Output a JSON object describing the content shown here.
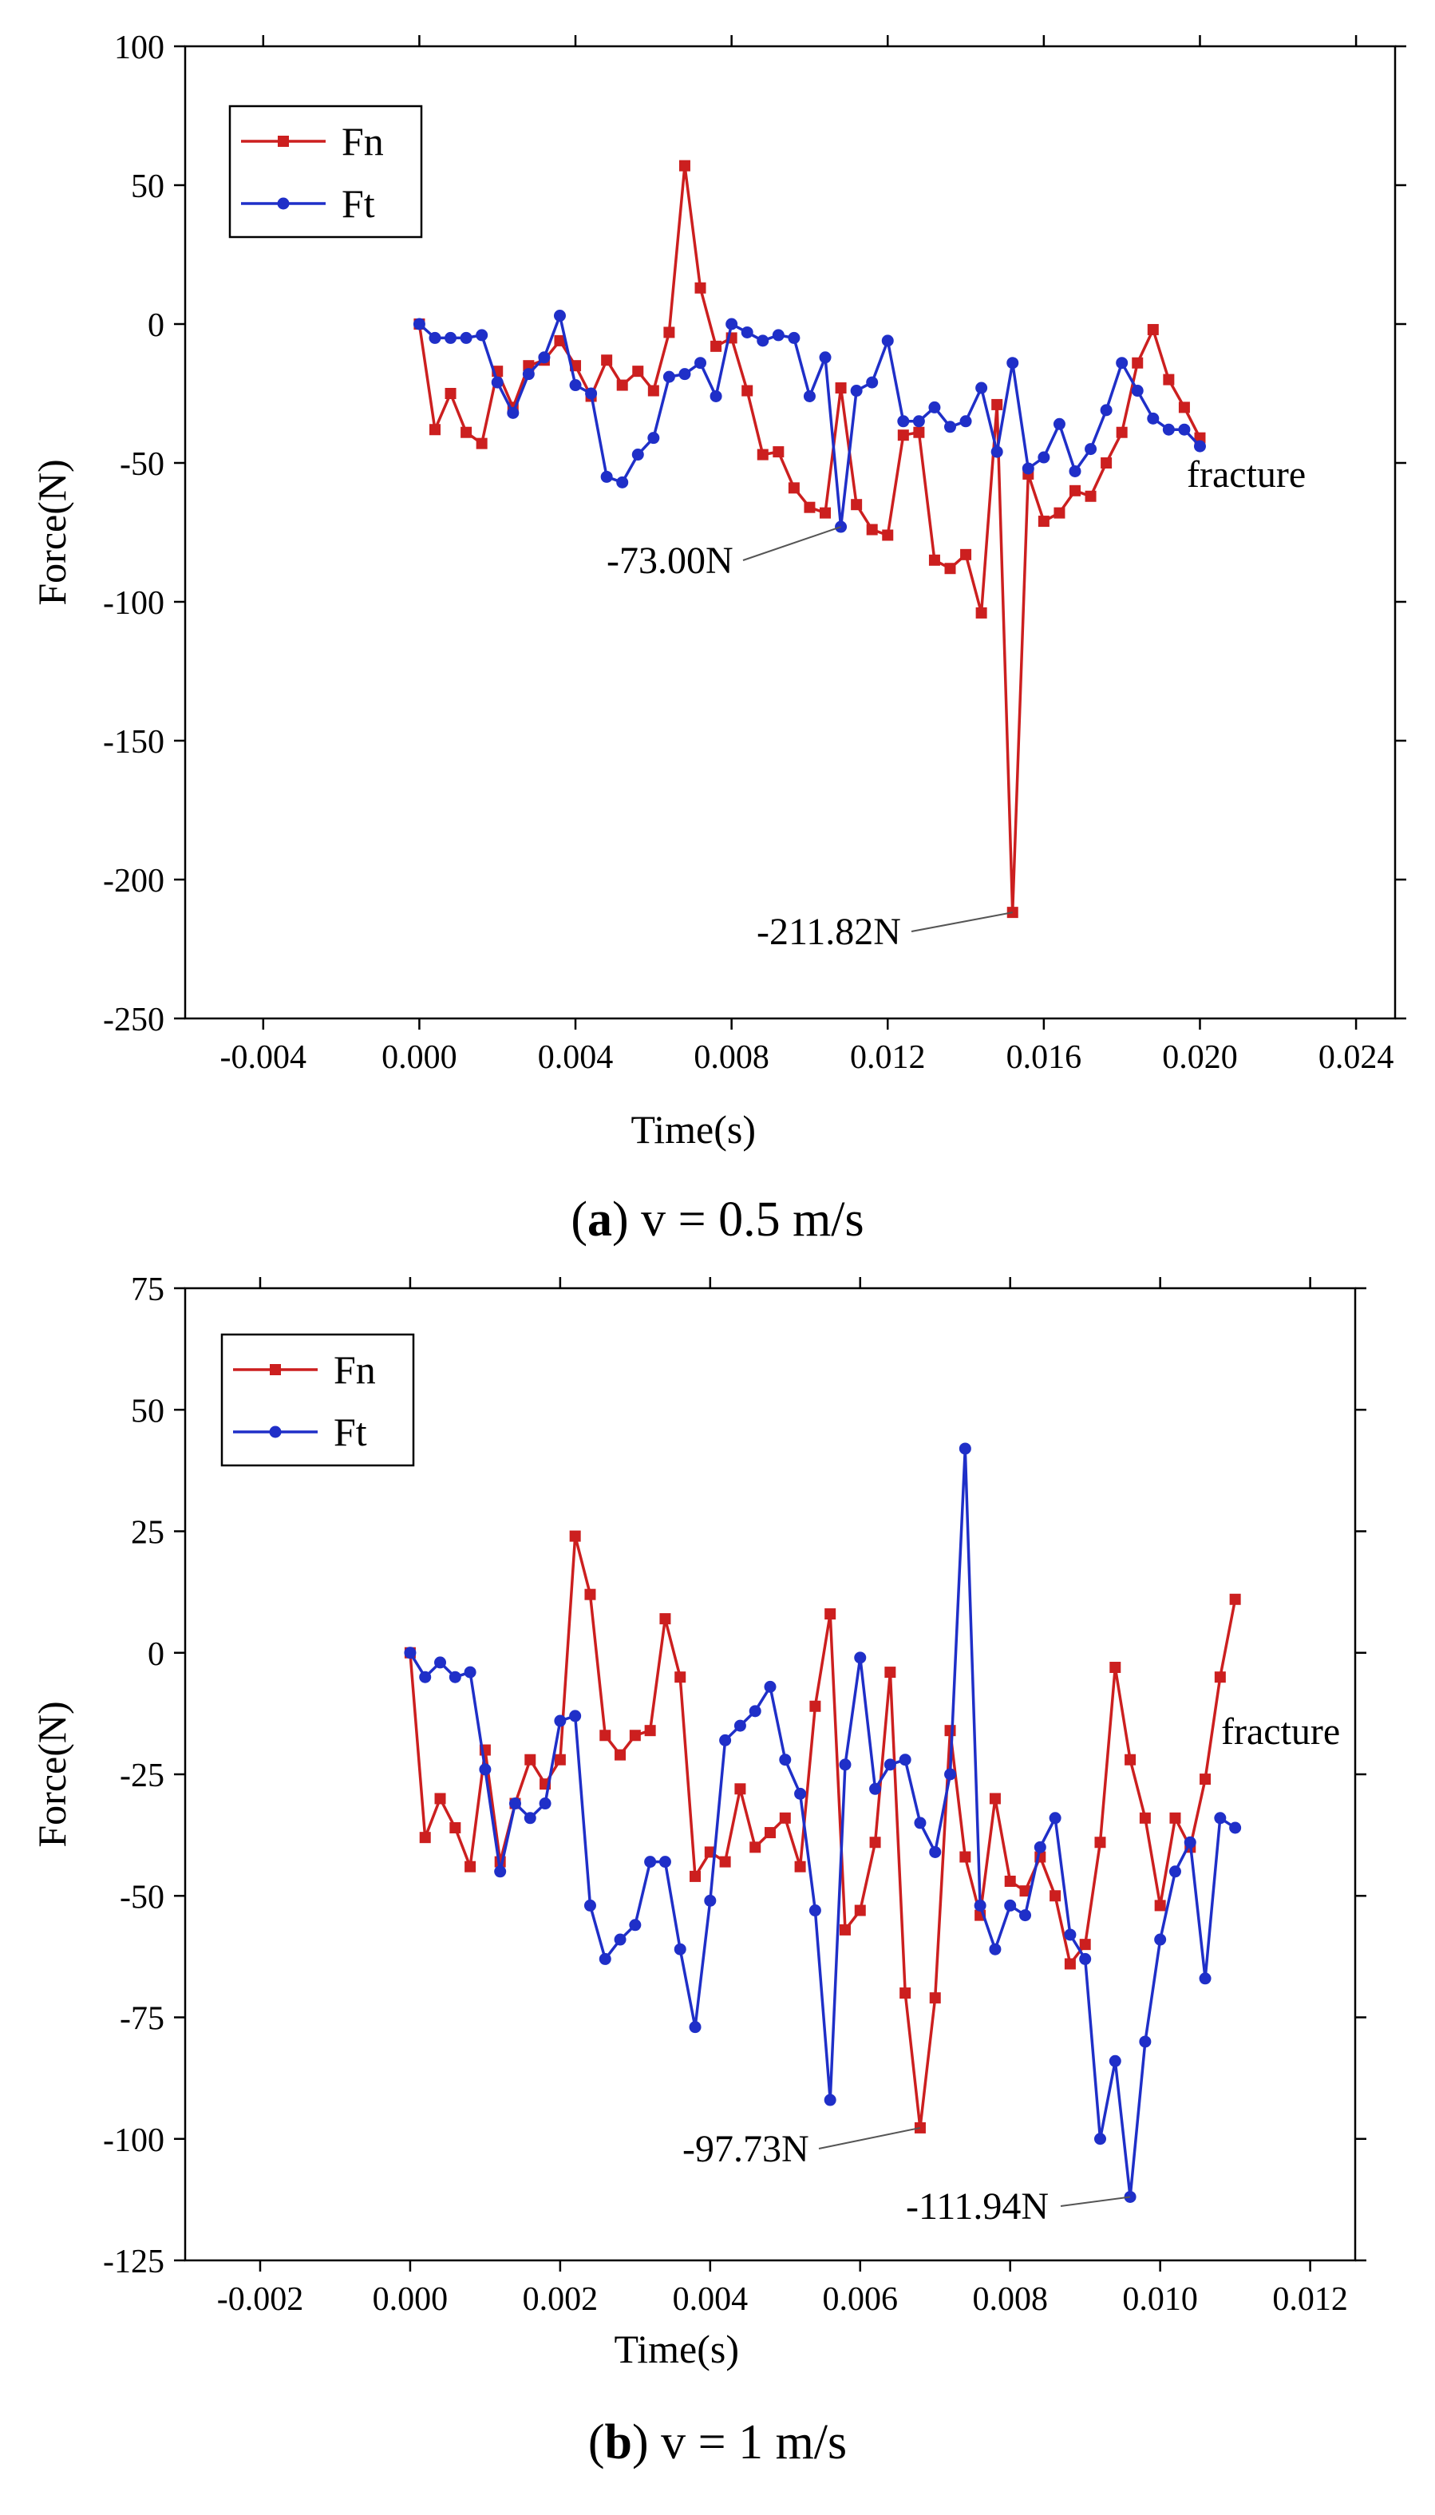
{
  "chart_data": [
    {
      "id": "a",
      "type": "line",
      "caption": {
        "letter": "a",
        "text": "v = 0.5 m/s"
      },
      "xlabel": "Time(s)",
      "ylabel": "Force(N)",
      "xlim": [
        -0.006,
        0.025
      ],
      "ylim": [
        -250,
        100
      ],
      "xticks": [
        -0.004,
        0.0,
        0.004,
        0.008,
        0.012,
        0.016,
        0.02,
        0.024
      ],
      "xtick_labels": [
        "-0.004",
        "0.000",
        "0.004",
        "0.008",
        "0.012",
        "0.016",
        "0.020",
        "0.024"
      ],
      "yticks": [
        100,
        50,
        0,
        -50,
        -100,
        -150,
        -200,
        -250
      ],
      "ytick_labels": [
        "100",
        "50",
        "0",
        "-50",
        "-100",
        "-150",
        "-200",
        "-250"
      ],
      "legend_position": "top-left",
      "series": [
        {
          "name": "Fn",
          "color": "#cc1f1f",
          "marker": "square",
          "x": [
            0.0,
            0.0004,
            0.0008,
            0.0012,
            0.0016,
            0.002,
            0.0024,
            0.0028,
            0.0032,
            0.0036,
            0.004,
            0.0044,
            0.0048,
            0.0052,
            0.0056,
            0.006,
            0.0064,
            0.0068,
            0.0072,
            0.0076,
            0.008,
            0.0084,
            0.0088,
            0.0092,
            0.0096,
            0.01,
            0.0104,
            0.0108,
            0.0112,
            0.0116,
            0.012,
            0.0124,
            0.0128,
            0.0132,
            0.0136,
            0.014,
            0.0144,
            0.0148,
            0.0152,
            0.0156,
            0.016,
            0.0164,
            0.0168,
            0.0172,
            0.0176,
            0.018,
            0.0184,
            0.0188,
            0.0192,
            0.0196,
            0.02
          ],
          "y": [
            0,
            -38,
            -25,
            -39,
            -43,
            -17,
            -30,
            -15,
            -13,
            -6,
            -15,
            -26,
            -13,
            -22,
            -17,
            -24,
            -3,
            57,
            13,
            -8,
            -5,
            -24,
            -47,
            -46,
            -59,
            -66,
            -68,
            -23,
            -65,
            -74,
            -76,
            -40,
            -39,
            -85,
            -88,
            -83,
            -104,
            -29,
            -211.82,
            -54,
            -71,
            -68,
            -60,
            -62,
            -50,
            -39,
            -14,
            -2,
            -20,
            -30,
            -41
          ]
        },
        {
          "name": "Ft",
          "color": "#1f2fc8",
          "marker": "circle",
          "x": [
            0.0,
            0.0004,
            0.0008,
            0.0012,
            0.0016,
            0.002,
            0.0024,
            0.0028,
            0.0032,
            0.0036,
            0.004,
            0.0044,
            0.0048,
            0.0052,
            0.0056,
            0.006,
            0.0064,
            0.0068,
            0.0072,
            0.0076,
            0.008,
            0.0084,
            0.0088,
            0.0092,
            0.0096,
            0.01,
            0.0104,
            0.0108,
            0.0112,
            0.0116,
            0.012,
            0.0124,
            0.0128,
            0.0132,
            0.0136,
            0.014,
            0.0144,
            0.0148,
            0.0152,
            0.0156,
            0.016,
            0.0164,
            0.0168,
            0.0172,
            0.0176,
            0.018,
            0.0184,
            0.0188,
            0.0192,
            0.0196,
            0.02
          ],
          "y": [
            0,
            -5,
            -5,
            -5,
            -4,
            -21,
            -32,
            -18,
            -12,
            3,
            -22,
            -25,
            -55,
            -57,
            -47,
            -41,
            -19,
            -18,
            -14,
            -26,
            0,
            -3,
            -6,
            -4,
            -5,
            -26,
            -12,
            -73.0,
            -24,
            -21,
            -6,
            -35,
            -35,
            -30,
            -37,
            -35,
            -23,
            -46,
            -14,
            -52,
            -48,
            -36,
            -53,
            -45,
            -31,
            -14,
            -24,
            -34,
            -38,
            -38,
            -44
          ]
        }
      ],
      "annotations": [
        {
          "text": "-73.00N",
          "x": 0.0108,
          "y": -73.0
        },
        {
          "text": "-211.82N",
          "x": 0.0152,
          "y": -211.82
        },
        {
          "text": "fracture",
          "x": 0.0198,
          "y": -58
        }
      ]
    },
    {
      "id": "b",
      "type": "line",
      "caption": {
        "letter": "b",
        "text": "v = 1 m/s"
      },
      "xlabel": "Time(s)",
      "ylabel": "Force(N)",
      "xlim": [
        -0.003,
        0.0126
      ],
      "ylim": [
        -125,
        75
      ],
      "xticks": [
        -0.002,
        0.0,
        0.002,
        0.004,
        0.006,
        0.008,
        0.01,
        0.012
      ],
      "xtick_labels": [
        "-0.002",
        "0.000",
        "0.002",
        "0.004",
        "0.006",
        "0.008",
        "0.010",
        "0.012"
      ],
      "yticks": [
        75,
        50,
        25,
        0,
        -25,
        -50,
        -75,
        -100,
        -125
      ],
      "ytick_labels": [
        "75",
        "50",
        "25",
        "0",
        "-25",
        "-50",
        "-75",
        "-100",
        "-125"
      ],
      "legend_position": "top-left",
      "series": [
        {
          "name": "Fn",
          "color": "#cc1f1f",
          "marker": "square",
          "x": [
            0.0,
            0.0002,
            0.0004,
            0.0006,
            0.0008,
            0.001,
            0.0012,
            0.0014,
            0.0016,
            0.0018,
            0.002,
            0.0022,
            0.0024,
            0.0026,
            0.0028,
            0.003,
            0.0032,
            0.0034,
            0.0036,
            0.0038,
            0.004,
            0.0042,
            0.0044,
            0.0046,
            0.0048,
            0.005,
            0.0052,
            0.0054,
            0.0056,
            0.0058,
            0.006,
            0.0062,
            0.0064,
            0.0066,
            0.0068,
            0.007,
            0.0072,
            0.0074,
            0.0076,
            0.0078,
            0.008,
            0.0082,
            0.0084,
            0.0086,
            0.0088,
            0.009,
            0.0092,
            0.0094,
            0.0096,
            0.0098,
            0.01,
            0.0102,
            0.0104,
            0.0106,
            0.0108,
            0.011
          ],
          "y": [
            0,
            -38,
            -30,
            -36,
            -44,
            -20,
            -43,
            -31,
            -22,
            -27,
            -22,
            24,
            12,
            -17,
            -21,
            -17,
            -16,
            7,
            -5,
            -46,
            -41,
            -43,
            -28,
            -40,
            -37,
            -34,
            -44,
            -11,
            8,
            -57,
            -53,
            -39,
            -4,
            -70,
            -97.73,
            -71,
            -16,
            -42,
            -54,
            -30,
            -47,
            -49,
            -42,
            -50,
            -64,
            -60,
            -39,
            -3,
            -22,
            -34,
            -52,
            -34,
            -40,
            -26,
            -5,
            11
          ]
        },
        {
          "name": "Ft",
          "color": "#1f2fc8",
          "marker": "circle",
          "x": [
            0.0,
            0.0002,
            0.0004,
            0.0006,
            0.0008,
            0.001,
            0.0012,
            0.0014,
            0.0016,
            0.0018,
            0.002,
            0.0022,
            0.0024,
            0.0026,
            0.0028,
            0.003,
            0.0032,
            0.0034,
            0.0036,
            0.0038,
            0.004,
            0.0042,
            0.0044,
            0.0046,
            0.0048,
            0.005,
            0.0052,
            0.0054,
            0.0056,
            0.0058,
            0.006,
            0.0062,
            0.0064,
            0.0066,
            0.0068,
            0.007,
            0.0072,
            0.0074,
            0.0076,
            0.0078,
            0.008,
            0.0082,
            0.0084,
            0.0086,
            0.0088,
            0.009,
            0.0092,
            0.0094,
            0.0096,
            0.0098,
            0.01,
            0.0102,
            0.0104,
            0.0106,
            0.0108,
            0.011
          ],
          "y": [
            0,
            -5,
            -2,
            -5,
            -4,
            -24,
            -45,
            -31,
            -34,
            -31,
            -14,
            -13,
            -52,
            -63,
            -59,
            -56,
            -43,
            -43,
            -61,
            -77,
            -51,
            -18,
            -15,
            -12,
            -7,
            -22,
            -29,
            -53,
            -92,
            -23,
            -1,
            -28,
            -23,
            -22,
            -35,
            -41,
            -25,
            42,
            -52,
            -61,
            -52,
            -54,
            -40,
            -34,
            -58,
            -63,
            -100,
            -84,
            -111.94,
            -80,
            -59,
            -45,
            -39,
            -67,
            -34,
            -36
          ]
        }
      ],
      "annotations": [
        {
          "text": "-97.73N",
          "x": 0.0068,
          "y": -97.73
        },
        {
          "text": "-111.94N",
          "x": 0.0096,
          "y": -111.94
        },
        {
          "text": "fracture",
          "x": 0.0107,
          "y": -19
        }
      ]
    }
  ]
}
